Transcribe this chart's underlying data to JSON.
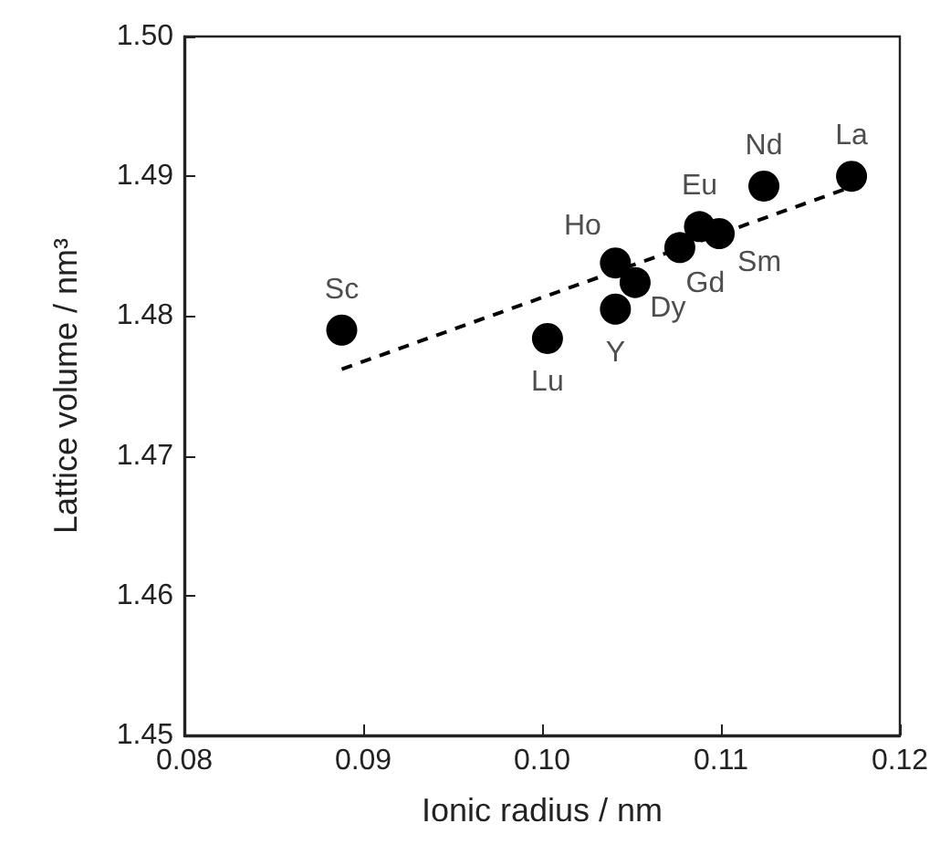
{
  "chart_data": {
    "type": "scatter",
    "xlabel": "Ionic radius / nm",
    "ylabel": "Lattice volume / nm³",
    "x": [
      0.0888,
      0.1003,
      0.1041,
      0.1041,
      0.1052,
      0.1077,
      0.1088,
      0.1099,
      0.1124,
      0.1173
    ],
    "series": [
      {
        "type": "scatter",
        "color": "#000000",
        "values": [
          1.479,
          1.4784,
          1.4805,
          1.4838,
          1.4824,
          1.4849,
          1.4864,
          1.4859,
          1.4893,
          1.49
        ],
        "marker": "circle"
      },
      {
        "type": "line",
        "color": "#000000",
        "x": [
          0.0888,
          0.1183
        ],
        "values": [
          1.4762,
          1.4897
        ],
        "line_style": "dashed",
        "marker": "none"
      }
    ],
    "annotations": [
      {
        "text": "Sc",
        "x": 0.0888,
        "y": 1.479
      },
      {
        "text": "Lu",
        "x": 0.1003,
        "y": 1.4784
      },
      {
        "text": "Y",
        "x": 0.1041,
        "y": 1.4805
      },
      {
        "text": "Ho",
        "x": 0.1041,
        "y": 1.4838
      },
      {
        "text": "Dy",
        "x": 0.1052,
        "y": 1.4824
      },
      {
        "text": "Gd",
        "x": 0.1077,
        "y": 1.4849
      },
      {
        "text": "Eu",
        "x": 0.1088,
        "y": 1.4864
      },
      {
        "text": "Sm",
        "x": 0.1099,
        "y": 1.4859
      },
      {
        "text": "Nd",
        "x": 0.1124,
        "y": 1.4893
      },
      {
        "text": "La",
        "x": 0.1173,
        "y": 1.49
      }
    ],
    "xlim": [
      0.08,
      0.12
    ],
    "xticks": [
      0.08,
      0.09,
      {
        "value": 0.1,
        "label": "0.10"
      },
      0.11,
      0.12
    ],
    "ylim": [
      1.45,
      1.5
    ],
    "yticks": [
      1.45,
      1.46,
      1.47,
      1.48,
      1.49,
      {
        "value": 1.5,
        "label": "1.50"
      }
    ],
    "grid": false
  }
}
